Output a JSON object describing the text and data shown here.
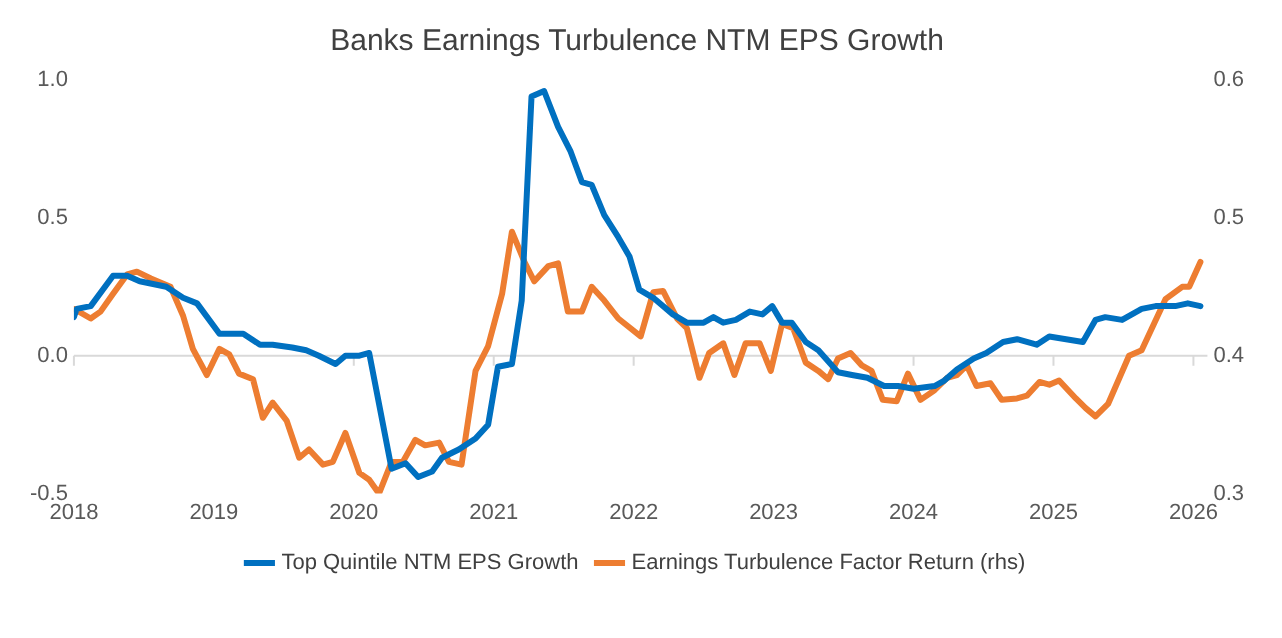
{
  "chart_data": {
    "type": "line",
    "title": "Banks Earnings Turbulence NTM EPS Growth",
    "xlim": [
      2018,
      2026.1
    ],
    "xticks": [
      2018,
      2019,
      2020,
      2021,
      2022,
      2023,
      2024,
      2025,
      2026
    ],
    "ylim": [
      -0.5,
      1
    ],
    "yticks": [
      {
        "value": -0.5,
        "label": "-0.5"
      },
      {
        "value": 0,
        "label": "0.0"
      },
      {
        "value": 0.5,
        "label": "0.5"
      },
      {
        "value": 1,
        "label": "1.0"
      }
    ],
    "y2lim": [
      0.3,
      0.6
    ],
    "y2ticks": [
      0.3,
      0.4,
      0.5,
      0.6
    ],
    "grid": false,
    "legend": "bottom",
    "marker": "none",
    "line_style": "solid",
    "ref_lines": [
      {
        "axis": "y",
        "value": 0,
        "color": "#d9d9d9"
      }
    ],
    "series": [
      {
        "name": "Top Quintile NTM EPS Growth",
        "color": "#0070c0",
        "x": [
          2018.0,
          2018.02,
          2018.12,
          2018.28,
          2018.38,
          2018.47,
          2018.66,
          2018.78,
          2018.88,
          2019.04,
          2019.21,
          2019.33,
          2019.42,
          2019.56,
          2019.66,
          2019.75,
          2019.87,
          2019.94,
          2020.04,
          2020.11,
          2020.27,
          2020.37,
          2020.46,
          2020.56,
          2020.63,
          2020.75,
          2020.87,
          2020.96,
          2021.03,
          2021.13,
          2021.2,
          2021.27,
          2021.36,
          2021.46,
          2021.55,
          2021.63,
          2021.7,
          2021.79,
          2021.89,
          2021.97,
          2022.04,
          2022.14,
          2022.28,
          2022.38,
          2022.5,
          2022.57,
          2022.64,
          2022.73,
          2022.83,
          2022.92,
          2022.99,
          2023.06,
          2023.13,
          2023.23,
          2023.32,
          2023.46,
          2023.56,
          2023.67,
          2023.79,
          2023.89,
          2024.0,
          2024.15,
          2024.22,
          2024.31,
          2024.43,
          2024.52,
          2024.64,
          2024.74,
          2024.88,
          2024.97,
          2025.09,
          2025.21,
          2025.3,
          2025.37,
          2025.49,
          2025.63,
          2025.73,
          2025.87,
          2025.96,
          2026.05
        ],
        "values": [
          0.14,
          0.17,
          0.18,
          0.29,
          0.29,
          0.27,
          0.25,
          0.21,
          0.19,
          0.08,
          0.08,
          0.04,
          0.04,
          0.03,
          0.02,
          0.0,
          -0.03,
          0.0,
          0.0,
          0.01,
          -0.41,
          -0.39,
          -0.44,
          -0.42,
          -0.37,
          -0.34,
          -0.3,
          -0.25,
          -0.04,
          -0.03,
          0.2,
          0.94,
          0.96,
          0.83,
          0.74,
          0.63,
          0.62,
          0.51,
          0.43,
          0.36,
          0.24,
          0.21,
          0.15,
          0.12,
          0.12,
          0.14,
          0.12,
          0.13,
          0.16,
          0.15,
          0.18,
          0.12,
          0.12,
          0.05,
          0.02,
          -0.06,
          -0.07,
          -0.08,
          -0.11,
          -0.11,
          -0.12,
          -0.11,
          -0.09,
          -0.05,
          -0.01,
          0.01,
          0.05,
          0.06,
          0.04,
          0.07,
          0.06,
          0.05,
          0.13,
          0.14,
          0.13,
          0.17,
          0.18,
          0.18,
          0.19,
          0.18
        ]
      },
      {
        "name": "Earnings Turbulence Factor Return (rhs)",
        "color": "#ed7d31",
        "axis": "y2",
        "x": [
          2018.0,
          2018.12,
          2018.19,
          2018.28,
          2018.38,
          2018.45,
          2018.55,
          2018.69,
          2018.78,
          2018.85,
          2018.95,
          2019.04,
          2019.11,
          2019.18,
          2019.28,
          2019.35,
          2019.42,
          2019.52,
          2019.61,
          2019.68,
          2019.78,
          2019.85,
          2019.94,
          2020.04,
          2020.11,
          2020.18,
          2020.27,
          2020.35,
          2020.44,
          2020.51,
          2020.61,
          2020.68,
          2020.77,
          2020.87,
          2020.96,
          2021.06,
          2021.13,
          2021.22,
          2021.29,
          2021.39,
          2021.46,
          2021.53,
          2021.63,
          2021.7,
          2021.79,
          2021.89,
          2022.05,
          2022.14,
          2022.21,
          2022.31,
          2022.38,
          2022.47,
          2022.54,
          2022.64,
          2022.72,
          2022.8,
          2022.9,
          2022.98,
          2023.06,
          2023.14,
          2023.23,
          2023.32,
          2023.39,
          2023.46,
          2023.55,
          2023.63,
          2023.7,
          2023.78,
          2023.88,
          2023.96,
          2024.05,
          2024.15,
          2024.24,
          2024.31,
          2024.38,
          2024.45,
          2024.55,
          2024.63,
          2024.74,
          2024.81,
          2024.9,
          2024.97,
          2025.04,
          2025.16,
          2025.23,
          2025.3,
          2025.39,
          2025.54,
          2025.63,
          2025.8,
          2025.92,
          2025.97,
          2026.05
        ],
        "values": [
          0.434,
          0.427,
          0.432,
          0.445,
          0.459,
          0.461,
          0.456,
          0.45,
          0.429,
          0.405,
          0.386,
          0.405,
          0.401,
          0.387,
          0.383,
          0.355,
          0.366,
          0.353,
          0.326,
          0.332,
          0.321,
          0.323,
          0.344,
          0.315,
          0.31,
          0.3,
          0.323,
          0.323,
          0.339,
          0.335,
          0.337,
          0.323,
          0.321,
          0.389,
          0.407,
          0.445,
          0.49,
          0.468,
          0.454,
          0.465,
          0.467,
          0.432,
          0.432,
          0.45,
          0.44,
          0.427,
          0.414,
          0.446,
          0.447,
          0.427,
          0.42,
          0.384,
          0.402,
          0.409,
          0.386,
          0.409,
          0.409,
          0.389,
          0.423,
          0.42,
          0.395,
          0.389,
          0.383,
          0.398,
          0.402,
          0.393,
          0.389,
          0.368,
          0.367,
          0.387,
          0.368,
          0.375,
          0.384,
          0.386,
          0.393,
          0.378,
          0.38,
          0.368,
          0.369,
          0.371,
          0.381,
          0.379,
          0.382,
          0.369,
          0.362,
          0.356,
          0.365,
          0.4,
          0.404,
          0.441,
          0.45,
          0.45,
          0.468
        ]
      }
    ]
  }
}
